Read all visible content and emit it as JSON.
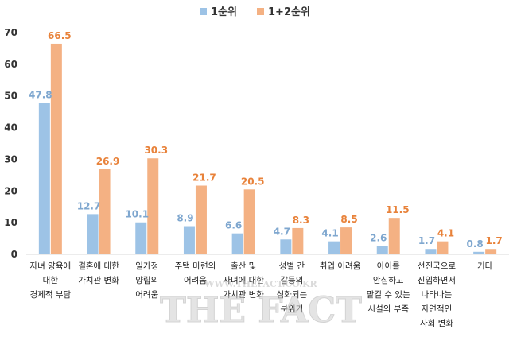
{
  "chart_data": {
    "type": "bar",
    "categories": [
      [
        "자녀 양육에",
        "대한",
        "경제적 부담"
      ],
      [
        "결혼에 대한",
        "가치관 변화"
      ],
      [
        "일가정",
        "양립의",
        "어려움"
      ],
      [
        "주택 마련의",
        "어려움"
      ],
      [
        "출산 및",
        "자녀에 대한",
        "가치관 변화"
      ],
      [
        "성별 간",
        "갈등의",
        "심화되는",
        "분위기"
      ],
      [
        "취업 어려움"
      ],
      [
        "아이를",
        "안심하고",
        "맡길 수 있는",
        "시설의 부족"
      ],
      [
        "선진국으로",
        "진입하면서",
        "나타나는",
        "자연적인",
        "사회 변화"
      ],
      [
        "기타"
      ]
    ],
    "series": [
      {
        "name": "1순위",
        "color": "#9DC3E6",
        "label_color": "#7FA7CF",
        "values": [
          47.8,
          12.7,
          10.1,
          8.9,
          6.6,
          4.7,
          4.1,
          2.6,
          1.7,
          0.8
        ]
      },
      {
        "name": "1+2순위",
        "color": "#F4B183",
        "label_color": "#E8823A",
        "values": [
          66.5,
          26.9,
          30.3,
          21.7,
          20.5,
          8.3,
          8.5,
          11.5,
          4.1,
          1.7
        ]
      }
    ],
    "yticks": [
      "0",
      "10",
      "20",
      "30",
      "40",
      "50",
      "60",
      "70"
    ],
    "ylim": [
      0,
      70
    ],
    "legend_position": "top-center",
    "grid": false
  },
  "watermark": {
    "line1": "WWW.THEFACT.CO.KR",
    "line2": "THE FACT"
  }
}
